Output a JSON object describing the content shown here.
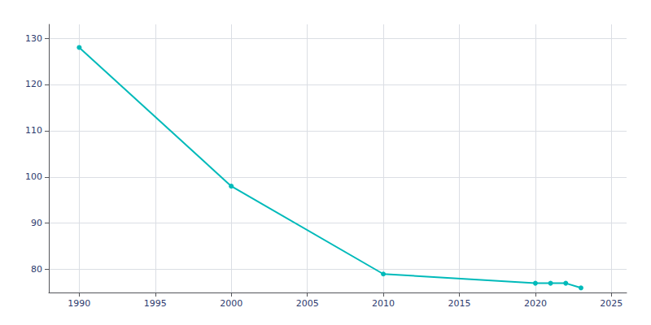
{
  "chart_data": {
    "type": "line",
    "x": [
      1990,
      2000,
      2010,
      2020,
      2021,
      2022,
      2023
    ],
    "values": [
      128,
      98,
      79,
      77,
      77,
      77,
      76
    ],
    "color": "#00BABA",
    "marker": "circle",
    "xlim": [
      1988,
      2026
    ],
    "xticks": [
      1990,
      1995,
      2000,
      2005,
      2010,
      2015,
      2020,
      2025
    ],
    "ylim": [
      75,
      133
    ],
    "yticks": [
      80,
      90,
      100,
      110,
      120,
      130
    ],
    "grid": true
  }
}
